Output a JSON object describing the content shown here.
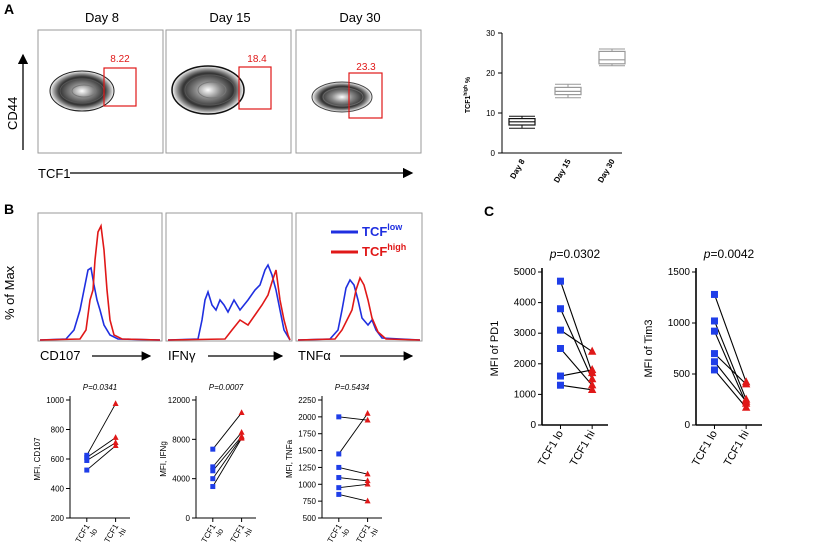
{
  "panels": {
    "a": "A",
    "b": "B",
    "c": "C"
  },
  "panel_a": {
    "days": [
      "Day 8",
      "Day 15",
      "Day 30"
    ],
    "gate_values": [
      "8.22",
      "18.4",
      "23.3"
    ],
    "y_axis": "CD44",
    "x_axis": "TCF1"
  },
  "panel_b_hist": {
    "y_axis": "% of Max",
    "x_labels": [
      "CD107",
      "IFNγ",
      "TNFα"
    ],
    "legend": {
      "low_base": "TCF",
      "low_sup": "low",
      "high_base": "TCF",
      "high_sup": "high",
      "low_color": "#1f2fe0",
      "high_color": "#e01818"
    }
  },
  "chart_data": [
    {
      "type": "box",
      "title": "",
      "categories": [
        "Day 8",
        "Day 15",
        "Day 30"
      ],
      "ylabel_base": "TCF1",
      "ylabel_sup": "high",
      "ylabel_suffix": " %",
      "ylim": [
        0,
        30
      ],
      "yticks": [
        0,
        10,
        20,
        30
      ],
      "boxes": [
        {
          "min": 6.2,
          "q1": 7.0,
          "median": 7.8,
          "q3": 8.6,
          "max": 9.2
        },
        {
          "min": 13.8,
          "q1": 14.6,
          "median": 15.4,
          "q3": 16.4,
          "max": 17.2
        },
        {
          "min": 21.8,
          "q1": 22.3,
          "median": 23.3,
          "q3": 25.4,
          "max": 26.0
        }
      ]
    },
    {
      "type": "paired-scatter",
      "panel": "B",
      "pvalue": "P=0.0341",
      "ylabel": "MFI, CD107",
      "categories": [
        "TCF1\n-lo",
        "TCF1\n-hi"
      ],
      "ylim": [
        200,
        1000
      ],
      "yticks": [
        200,
        400,
        600,
        800,
        1000
      ],
      "pairs": [
        [
          625,
          975
        ],
        [
          610,
          745
        ],
        [
          590,
          710
        ],
        [
          525,
          690
        ]
      ]
    },
    {
      "type": "paired-scatter",
      "panel": "B",
      "pvalue": "P=0.0007",
      "ylabel": "MFI, IFNg",
      "categories": [
        "TCF1\n-lo",
        "TCF1\n-hi"
      ],
      "ylim": [
        0,
        12000
      ],
      "yticks": [
        0,
        4000,
        8000,
        12000
      ],
      "pairs": [
        [
          7000,
          10700
        ],
        [
          5200,
          8700
        ],
        [
          4800,
          8300
        ],
        [
          4000,
          8200
        ],
        [
          3200,
          8100
        ]
      ]
    },
    {
      "type": "paired-scatter",
      "panel": "B",
      "pvalue": "P=0.5434",
      "ylabel": "MFI, TNFa",
      "categories": [
        "TCF1\n-lo",
        "TCF1\n-hi"
      ],
      "ylim": [
        500,
        2250
      ],
      "yticks": [
        500,
        750,
        1000,
        1250,
        1500,
        1750,
        2000,
        2250
      ],
      "pairs": [
        [
          2000,
          1950
        ],
        [
          1450,
          2050
        ],
        [
          1250,
          1150
        ],
        [
          1100,
          1050
        ],
        [
          950,
          1000
        ],
        [
          850,
          750
        ]
      ]
    },
    {
      "type": "paired-scatter",
      "panel": "C",
      "pvalue_p": "p",
      "pvalue_rest": "=0.0302",
      "ylabel": "MFI of PD1",
      "categories": [
        "TCF1 lo",
        "TCF1 hi"
      ],
      "ylim": [
        0,
        5000
      ],
      "yticks": [
        0,
        1000,
        2000,
        3000,
        4000,
        5000
      ],
      "pairs": [
        [
          4700,
          1700
        ],
        [
          3800,
          1500
        ],
        [
          3100,
          2400
        ],
        [
          2500,
          1300
        ],
        [
          1600,
          1800
        ],
        [
          1300,
          1150
        ]
      ]
    },
    {
      "type": "paired-scatter",
      "panel": "C",
      "pvalue_p": "p",
      "pvalue_rest": "=0.0042",
      "ylabel": "MFI of Tim3",
      "categories": [
        "TCF1 lo",
        "TCF1 hi"
      ],
      "ylim": [
        0,
        1500
      ],
      "yticks": [
        0,
        500,
        1000,
        1500
      ],
      "pairs": [
        [
          1280,
          420
        ],
        [
          1020,
          250
        ],
        [
          920,
          210
        ],
        [
          700,
          400
        ],
        [
          620,
          230
        ],
        [
          540,
          170
        ]
      ]
    }
  ]
}
